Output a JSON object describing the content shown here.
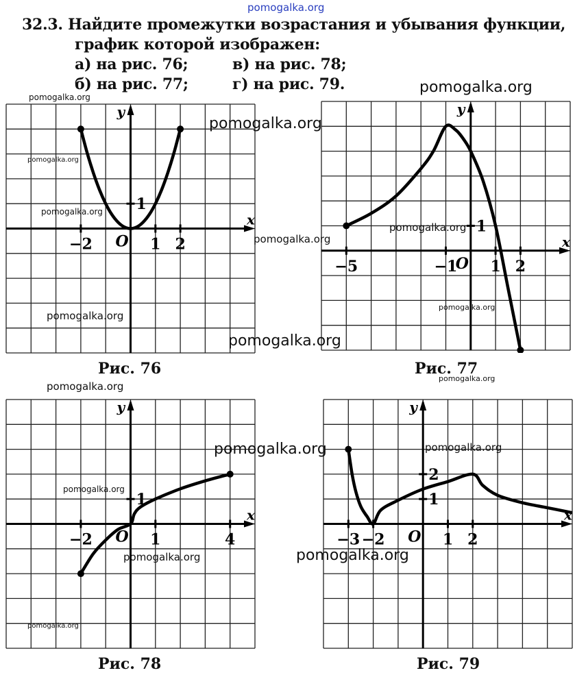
{
  "header_watermark": "pomogalka.org",
  "task": {
    "number": "32.3.",
    "line1": "Найдите промежутки возрастания и убывания функции,",
    "line2": "график которой изображен:",
    "a": "а) на рис. 76;",
    "v": "в) на рис. 78;",
    "b": "б) на рис. 77;",
    "g": "г) на рис. 79."
  },
  "figures": [
    {
      "caption": "Рис. 76",
      "xlim": [
        -5,
        5
      ],
      "ylim": [
        -5,
        5
      ],
      "xticks": [
        {
          "v": -2,
          "t": "−2"
        },
        {
          "v": 1,
          "t": "1"
        },
        {
          "v": 2,
          "t": "2"
        }
      ],
      "yticks": [
        {
          "v": 1,
          "t": "1"
        }
      ],
      "points": [
        [
          -2,
          4
        ],
        [
          -1.75,
          3.06
        ],
        [
          -1.5,
          2.25
        ],
        [
          -1.25,
          1.56
        ],
        [
          -1,
          1
        ],
        [
          -0.75,
          0.56
        ],
        [
          -0.5,
          0.25
        ],
        [
          -0.25,
          0.06
        ],
        [
          0,
          0
        ],
        [
          0.25,
          0.06
        ],
        [
          0.5,
          0.25
        ],
        [
          0.75,
          0.56
        ],
        [
          1,
          1
        ],
        [
          1.25,
          1.56
        ],
        [
          1.5,
          2.25
        ],
        [
          1.75,
          3.06
        ],
        [
          2,
          4
        ]
      ],
      "dots": [
        [
          -2,
          4
        ],
        [
          2,
          4
        ]
      ]
    },
    {
      "caption": "Рис. 77",
      "xlim": [
        -6,
        4
      ],
      "ylim": [
        -4,
        6
      ],
      "xticks": [
        {
          "v": -5,
          "t": "−5"
        },
        {
          "v": -1,
          "t": "−1"
        },
        {
          "v": 1,
          "t": "1"
        },
        {
          "v": 2,
          "t": "2"
        }
      ],
      "yticks": [
        {
          "v": 1,
          "t": "1"
        }
      ],
      "points": [
        [
          -5,
          1
        ],
        [
          -4,
          1.5
        ],
        [
          -3,
          2.2
        ],
        [
          -2,
          3.3
        ],
        [
          -1.5,
          4
        ],
        [
          -1,
          5
        ],
        [
          -0.6,
          4.85
        ],
        [
          -0.3,
          4.5
        ],
        [
          0,
          4
        ],
        [
          0.5,
          2.8
        ],
        [
          1,
          1
        ],
        [
          1.5,
          -1.5
        ],
        [
          2,
          -4
        ]
      ],
      "dots": [
        [
          -5,
          1
        ],
        [
          2,
          -4
        ]
      ]
    },
    {
      "caption": "Рис. 78",
      "xlim": [
        -5,
        5
      ],
      "ylim": [
        -5,
        5
      ],
      "xticks": [
        {
          "v": -2,
          "t": "−2"
        },
        {
          "v": 1,
          "t": "1"
        },
        {
          "v": 4,
          "t": "4"
        }
      ],
      "yticks": [
        {
          "v": 1,
          "t": "1"
        }
      ],
      "points": [
        [
          -2,
          -2
        ],
        [
          -1.5,
          -1.2
        ],
        [
          -1,
          -0.65
        ],
        [
          -0.5,
          -0.22
        ],
        [
          0,
          0
        ],
        [
          0.15,
          0.4
        ],
        [
          0.4,
          0.68
        ],
        [
          1,
          1
        ],
        [
          2,
          1.41
        ],
        [
          3,
          1.73
        ],
        [
          4,
          2
        ]
      ],
      "dots": [
        [
          -2,
          -2
        ],
        [
          4,
          2
        ]
      ]
    },
    {
      "caption": "Рис. 79",
      "xlim": [
        -4,
        6
      ],
      "ylim": [
        -5,
        5
      ],
      "xticks": [
        {
          "v": -3,
          "t": "−3"
        },
        {
          "v": -2,
          "t": "−2"
        },
        {
          "v": 1,
          "t": "1"
        },
        {
          "v": 2,
          "t": "2"
        }
      ],
      "yticks": [
        {
          "v": 1,
          "t": "1"
        },
        {
          "v": 2,
          "t": "2"
        }
      ],
      "points": [
        [
          -3,
          3
        ],
        [
          -2.85,
          2
        ],
        [
          -2.7,
          1.3
        ],
        [
          -2.5,
          0.7
        ],
        [
          -2.25,
          0.3
        ],
        [
          -2,
          0
        ],
        [
          -1.7,
          0.55
        ],
        [
          -1,
          0.95
        ],
        [
          0,
          1.4
        ],
        [
          1,
          1.7
        ],
        [
          2,
          2
        ],
        [
          2.4,
          1.55
        ],
        [
          3,
          1.15
        ],
        [
          4,
          0.85
        ],
        [
          5,
          0.65
        ],
        [
          6,
          0.45
        ]
      ],
      "dots": [
        [
          -3,
          3
        ]
      ]
    }
  ],
  "axis_labels": {
    "x": "x",
    "y": "y",
    "origin": "O"
  },
  "watermarks": [
    "pomogalka.org",
    "pomogalka.org",
    "pomogalka.org",
    "pomogalka.org",
    "pomogalka.org",
    "pomogalka.org",
    "pomogalka.org",
    "pomogalka.org",
    "pomogalka.org",
    "pomogalka.org",
    "pomogalka.org",
    "pomogalka.org",
    "pomogalka.org",
    "pomogalka.org",
    "pomogalka.org",
    "pomogalka.org",
    "pomogalka.org",
    "pomogalka.org"
  ]
}
